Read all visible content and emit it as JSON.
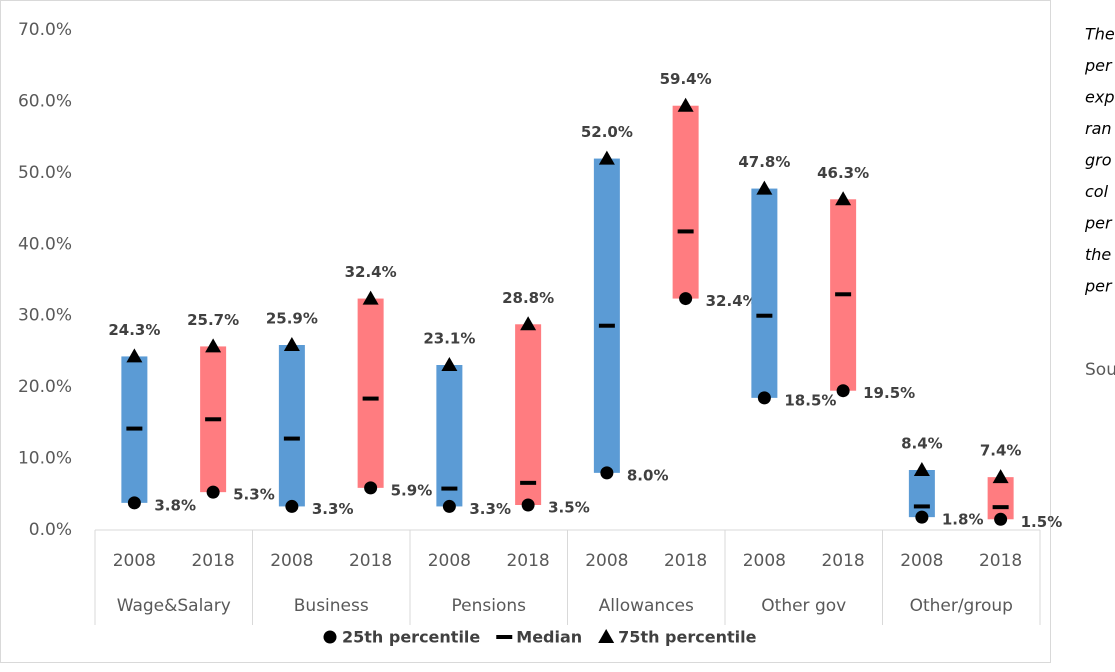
{
  "chart_data": {
    "type": "range-bar",
    "categories": [
      "2008",
      "2018",
      "2008",
      "2018",
      "2008",
      "2018",
      "2008",
      "2018",
      "2008",
      "2018",
      "2008",
      "2018"
    ],
    "groups": [
      "Wage&Salary",
      "Business",
      "Pensions",
      "Allowances",
      "Other gov",
      "Other/group"
    ],
    "bar_colors": [
      "#5b9bd5",
      "#ff7c80"
    ],
    "series": [
      {
        "name": "25th percentile",
        "marker": "circle",
        "color": "#000000",
        "values": [
          3.8,
          5.3,
          3.3,
          5.9,
          3.3,
          3.5,
          8.0,
          32.4,
          18.5,
          19.5,
          1.8,
          1.5
        ],
        "value_labels": [
          "3.8%",
          "5.3%",
          "3.3%",
          "5.9%",
          "3.3%",
          "3.5%",
          "8.0%",
          "32.4%",
          "18.5%",
          "19.5%",
          "1.8%",
          "1.5%"
        ]
      },
      {
        "name": "Median",
        "marker": "dash",
        "color": "#000000",
        "values": [
          14.2,
          15.5,
          12.8,
          18.4,
          5.8,
          6.6,
          28.6,
          41.8,
          30.0,
          33.0,
          3.3,
          3.2
        ]
      },
      {
        "name": "75th percentile",
        "marker": "triangle",
        "color": "#000000",
        "values": [
          24.3,
          25.7,
          25.9,
          32.4,
          23.1,
          28.8,
          52.0,
          59.4,
          47.8,
          46.3,
          8.4,
          7.4
        ],
        "value_labels": [
          "24.3%",
          "25.7%",
          "25.9%",
          "32.4%",
          "23.1%",
          "28.8%",
          "52.0%",
          "59.4%",
          "47.8%",
          "46.3%",
          "8.4%",
          "7.4%"
        ]
      }
    ],
    "ylim": [
      0,
      70
    ],
    "yticks": [
      {
        "value": 0,
        "label": "0.0%"
      },
      {
        "value": 10,
        "label": "10.0%"
      },
      {
        "value": 20,
        "label": "20.0%"
      },
      {
        "value": 30,
        "label": "30.0%"
      },
      {
        "value": 40,
        "label": "40.0%"
      },
      {
        "value": 50,
        "label": "50.0%"
      },
      {
        "value": 60,
        "label": "60.0%"
      },
      {
        "value": 70,
        "label": "70.0%"
      }
    ],
    "note_lines": [
      "The",
      "per",
      "exp",
      "ran",
      "gro",
      "col",
      "per",
      "the",
      "per"
    ],
    "source": "Sou"
  }
}
